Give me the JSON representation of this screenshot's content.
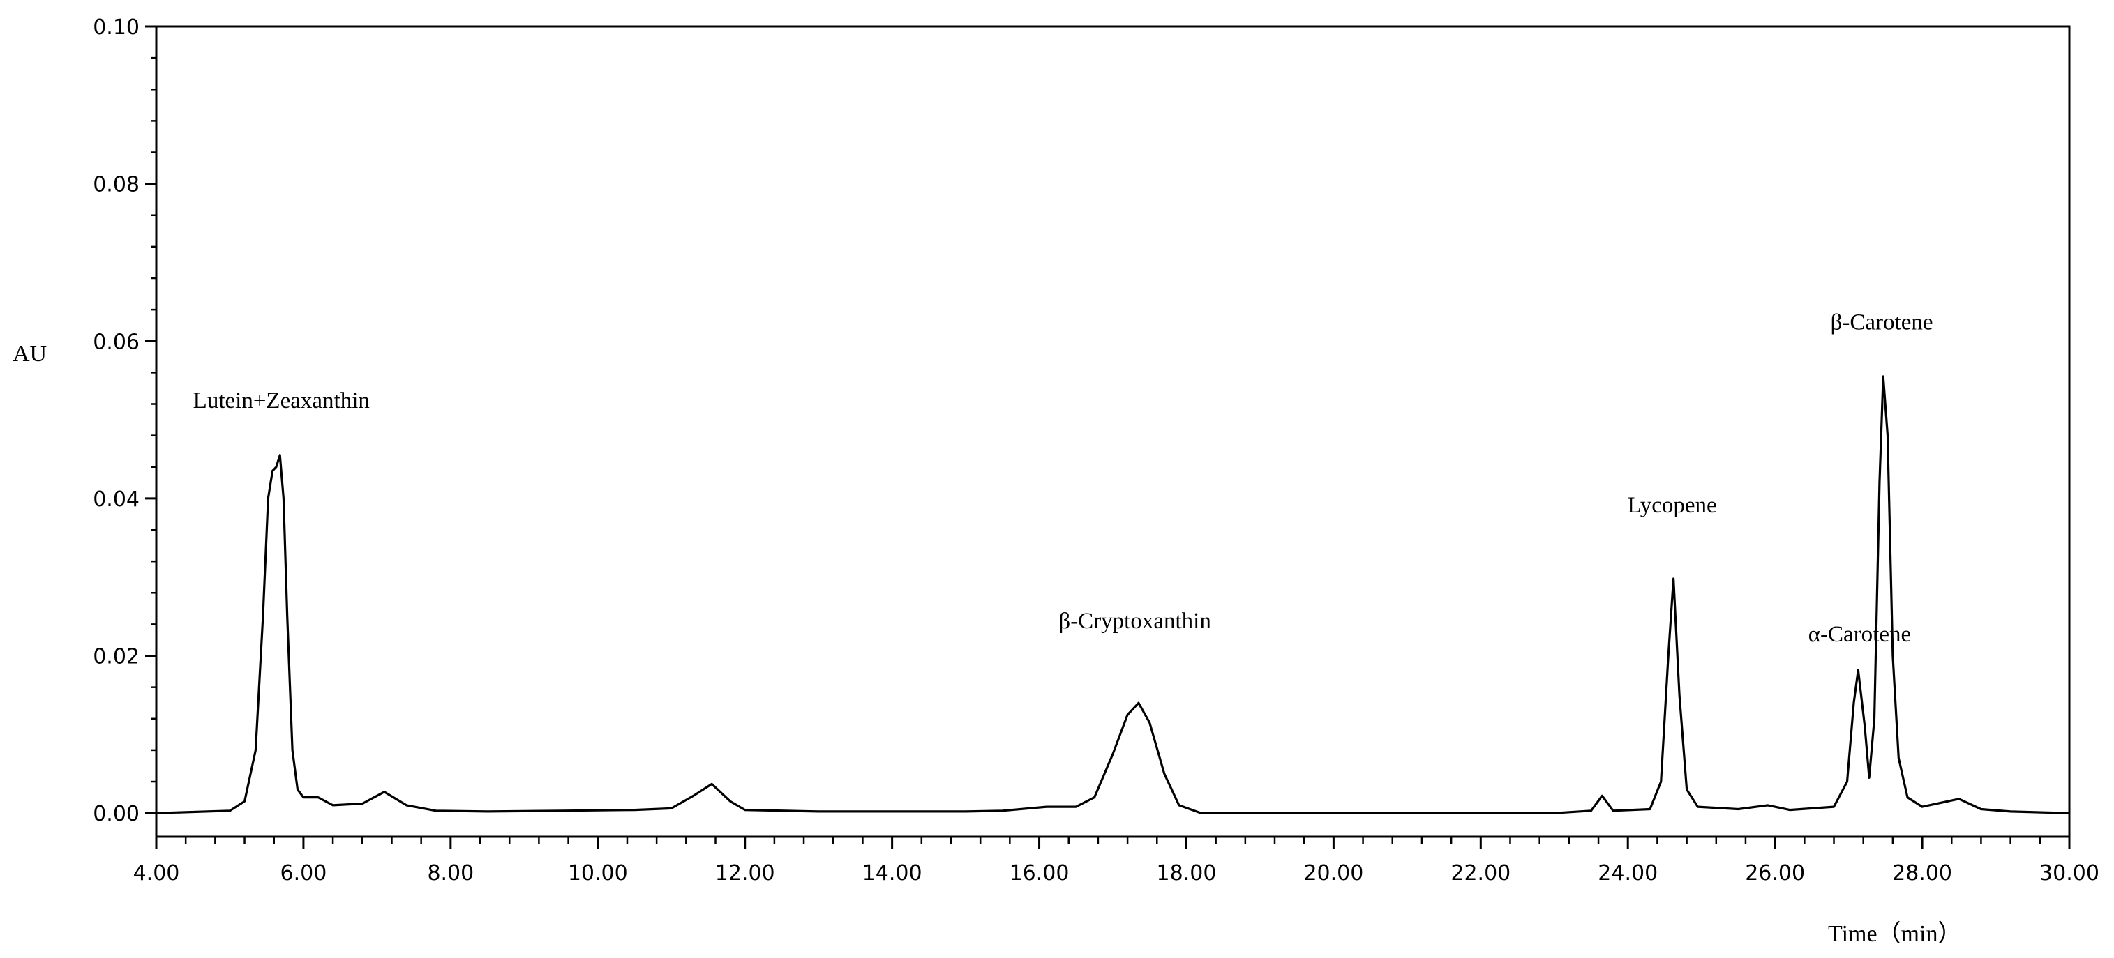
{
  "chart_data": {
    "type": "line",
    "title": "",
    "xlabel": "Time（min）",
    "ylabel": "AU",
    "xlim": [
      4.0,
      30.0
    ],
    "ylim": [
      -0.003,
      0.1
    ],
    "x_ticks": [
      "4.00",
      "6.00",
      "8.00",
      "10.00",
      "12.00",
      "14.00",
      "16.00",
      "18.00",
      "20.00",
      "22.00",
      "24.00",
      "26.00",
      "28.00",
      "30.00"
    ],
    "y_ticks": [
      "0.00",
      "0.02",
      "0.04",
      "0.06",
      "0.08",
      "0.10"
    ],
    "grid": false,
    "line_color": "#000000",
    "series": [
      {
        "points": [
          [
            4.0,
            0.0
          ],
          [
            5.0,
            0.0003
          ],
          [
            5.2,
            0.0015
          ],
          [
            5.35,
            0.008
          ],
          [
            5.45,
            0.025
          ],
          [
            5.52,
            0.04
          ],
          [
            5.58,
            0.0435
          ],
          [
            5.63,
            0.044
          ],
          [
            5.68,
            0.0455
          ],
          [
            5.73,
            0.04
          ],
          [
            5.78,
            0.025
          ],
          [
            5.85,
            0.008
          ],
          [
            5.92,
            0.003
          ],
          [
            6.0,
            0.002
          ],
          [
            6.2,
            0.002
          ],
          [
            6.4,
            0.001
          ],
          [
            6.8,
            0.0012
          ],
          [
            7.1,
            0.0027
          ],
          [
            7.4,
            0.001
          ],
          [
            7.8,
            0.0003
          ],
          [
            8.5,
            0.0002
          ],
          [
            9.5,
            0.0003
          ],
          [
            10.5,
            0.0004
          ],
          [
            11.0,
            0.0006
          ],
          [
            11.3,
            0.0022
          ],
          [
            11.55,
            0.0037
          ],
          [
            11.8,
            0.0015
          ],
          [
            12.0,
            0.0004
          ],
          [
            13.0,
            0.0002
          ],
          [
            14.0,
            0.0002
          ],
          [
            15.0,
            0.0002
          ],
          [
            15.5,
            0.0003
          ],
          [
            16.1,
            0.0008
          ],
          [
            16.5,
            0.0008
          ],
          [
            16.75,
            0.002
          ],
          [
            17.0,
            0.0075
          ],
          [
            17.2,
            0.0125
          ],
          [
            17.35,
            0.014
          ],
          [
            17.5,
            0.0115
          ],
          [
            17.7,
            0.005
          ],
          [
            17.9,
            0.001
          ],
          [
            18.2,
            0.0
          ],
          [
            20.0,
            0.0
          ],
          [
            21.0,
            0.0
          ],
          [
            22.0,
            0.0
          ],
          [
            23.0,
            0.0
          ],
          [
            23.5,
            0.0003
          ],
          [
            23.65,
            0.0022
          ],
          [
            23.8,
            0.0003
          ],
          [
            24.3,
            0.0005
          ],
          [
            24.45,
            0.004
          ],
          [
            24.55,
            0.02
          ],
          [
            24.62,
            0.0298
          ],
          [
            24.7,
            0.015
          ],
          [
            24.8,
            0.003
          ],
          [
            24.95,
            0.0008
          ],
          [
            25.5,
            0.0005
          ],
          [
            25.9,
            0.001
          ],
          [
            26.2,
            0.0004
          ],
          [
            26.8,
            0.0008
          ],
          [
            26.98,
            0.004
          ],
          [
            27.07,
            0.014
          ],
          [
            27.13,
            0.0182
          ],
          [
            27.22,
            0.011
          ],
          [
            27.28,
            0.0045
          ],
          [
            27.35,
            0.012
          ],
          [
            27.42,
            0.042
          ],
          [
            27.47,
            0.0555
          ],
          [
            27.53,
            0.048
          ],
          [
            27.6,
            0.02
          ],
          [
            27.68,
            0.007
          ],
          [
            27.8,
            0.002
          ],
          [
            28.0,
            0.0008
          ],
          [
            28.2,
            0.0012
          ],
          [
            28.5,
            0.0018
          ],
          [
            28.8,
            0.0005
          ],
          [
            29.2,
            0.0002
          ],
          [
            30.0,
            0.0
          ]
        ]
      }
    ],
    "annotations": [
      {
        "text": "Lutein+Zeaxanthin",
        "x": 5.7,
        "y": 0.0515
      },
      {
        "text": "β-Cryptoxanthin",
        "x": 17.3,
        "y": 0.0235
      },
      {
        "text": "Lycopene",
        "x": 24.6,
        "y": 0.0382
      },
      {
        "text": "α-Carotene",
        "x": 27.15,
        "y": 0.0218
      },
      {
        "text": "β-Carotene",
        "x": 27.45,
        "y": 0.0615
      }
    ]
  }
}
